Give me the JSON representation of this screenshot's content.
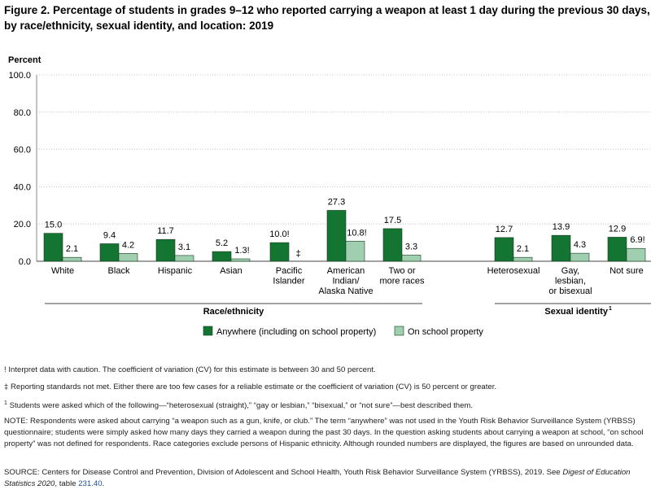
{
  "figure": {
    "title": "Figure 2. Percentage of students in grades 9–12 who reported carrying a weapon at least 1 day during the previous 30 days, by race/ethnicity, sexual identity, and location: 2019"
  },
  "colors": {
    "anywhere": "#137531",
    "school": "#9fcfaf",
    "bar_border": "#1a3a22"
  },
  "chart_data": {
    "type": "bar",
    "ylabel": "Percent",
    "ylim": [
      0,
      100
    ],
    "yticks": [
      "0.0",
      "20.0",
      "40.0",
      "60.0",
      "80.0",
      "100.0"
    ],
    "categories": [
      "White",
      "Black",
      "Hispanic",
      "Asian",
      "Pacific Islander",
      "American Indian/ Alaska Native",
      "Two or more races",
      "Heterosexual",
      "Gay, lesbian, or bisexual",
      "Not sure"
    ],
    "category_lines": [
      [
        "White"
      ],
      [
        "Black"
      ],
      [
        "Hispanic"
      ],
      [
        "Asian"
      ],
      [
        "Pacific",
        "Islander"
      ],
      [
        "American",
        "Indian/",
        "Alaska Native"
      ],
      [
        "Two or",
        "more races"
      ],
      [
        "Heterosexual"
      ],
      [
        "Gay,",
        "lesbian,",
        "or bisexual"
      ],
      [
        "Not sure"
      ]
    ],
    "series": [
      {
        "name": "Anywhere (including on school property)",
        "values": [
          15.0,
          9.4,
          11.7,
          5.2,
          10.0,
          27.3,
          17.5,
          12.7,
          13.9,
          12.9
        ],
        "labels": [
          "15.0",
          "9.4",
          "11.7",
          "5.2",
          "10.0!",
          "27.3",
          "17.5",
          "12.7",
          "13.9",
          "12.9"
        ]
      },
      {
        "name": "On school property",
        "values": [
          2.1,
          4.2,
          3.1,
          1.3,
          null,
          10.8,
          3.3,
          2.1,
          4.3,
          6.9
        ],
        "labels": [
          "2.1",
          "4.2",
          "3.1",
          "1.3!",
          "‡",
          "10.8!",
          "3.3",
          "2.1",
          "4.3",
          "6.9!"
        ]
      }
    ],
    "groups": [
      {
        "label": "Race/ethnicity",
        "categories": 7
      },
      {
        "label": "Sexual identity",
        "superscript": "1",
        "categories": 3
      }
    ],
    "legend_placement": "bottom",
    "grid": true
  },
  "notes": {
    "interpret": "! Interpret data with caution. The coefficient of variation (CV) for this estimate is between 30 and 50 percent.",
    "reporting": "‡ Reporting standards not met. Either there are too few cases for a reliable estimate or the coefficient of variation (CV) is 50 percent or greater.",
    "footnote_marker": "1",
    "footnote": " Students were asked which of the following—“heterosexual (straight),” “gay or lesbian,” “bisexual,” or “not sure”—best described them.",
    "note": "NOTE: Respondents were asked about carrying “a weapon such as a gun, knife, or club.” The term “anywhere” was not used in the Youth Risk Behavior Surveillance System (YRBSS) questionnaire; students were simply asked how many days they carried a weapon during the past 30 days. In the question asking students about carrying a weapon at school, “on school property” was not defined for respondents. Race categories exclude persons of Hispanic ethnicity. Although rounded numbers are displayed, the figures are based on unrounded data.",
    "source_prefix": "SOURCE: Centers for Disease Control and Prevention, Division of Adolescent and School Health, Youth Risk Behavior Surveillance System (YRBSS), 2019. See ",
    "source_italic": "Digest of Education Statistics 2020",
    "source_mid": ", table ",
    "source_link": "231.40",
    "source_end": "."
  }
}
